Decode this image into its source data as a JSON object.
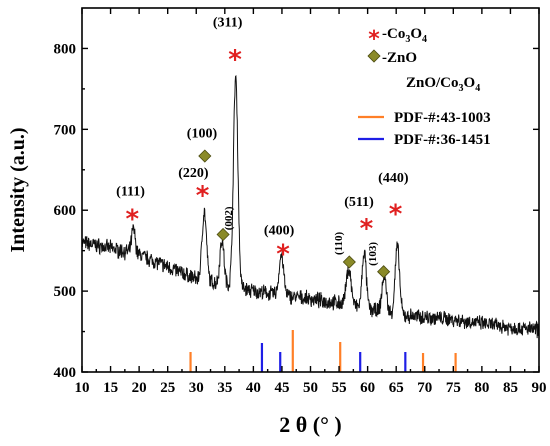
{
  "chart_data": {
    "type": "line",
    "xlabel": "2 θ (° )",
    "ylabel": "Intensity (a.u.)",
    "xlim": [
      10,
      90
    ],
    "ylim": [
      400,
      850
    ],
    "xticks": [
      10,
      15,
      20,
      25,
      30,
      35,
      40,
      45,
      50,
      55,
      60,
      65,
      70,
      75,
      80,
      85,
      90
    ],
    "yticks": [
      400,
      500,
      600,
      700,
      800
    ],
    "grid": false,
    "colors": {
      "trace": "#111111",
      "co3o4_star": "#e02020",
      "zno_diamond": "#8a8a28",
      "pdf_43_1003": "#ff7f27",
      "pdf_36_1451": "#1e1ee6"
    },
    "series": [
      {
        "name": "ZnO/Co3O4",
        "type": "xrd-pattern",
        "baseline": [
          [
            10,
            560
          ],
          [
            15,
            553
          ],
          [
            20,
            545
          ],
          [
            25,
            530
          ],
          [
            30,
            515
          ],
          [
            35,
            508
          ],
          [
            40,
            500
          ],
          [
            45,
            495
          ],
          [
            50,
            490
          ],
          [
            55,
            485
          ],
          [
            60,
            478
          ],
          [
            65,
            470
          ],
          [
            70,
            468
          ],
          [
            75,
            465
          ],
          [
            80,
            460
          ],
          [
            85,
            455
          ],
          [
            90,
            452
          ]
        ],
        "peaks": [
          {
            "x": 19.0,
            "height": 30,
            "width": 0.45
          },
          {
            "x": 31.4,
            "height": 85,
            "width": 0.55
          },
          {
            "x": 34.5,
            "height": 55,
            "width": 0.5
          },
          {
            "x": 36.9,
            "height": 260,
            "width": 0.55
          },
          {
            "x": 44.9,
            "height": 50,
            "width": 0.55
          },
          {
            "x": 56.7,
            "height": 45,
            "width": 0.6
          },
          {
            "x": 59.4,
            "height": 70,
            "width": 0.5
          },
          {
            "x": 62.9,
            "height": 45,
            "width": 0.55
          },
          {
            "x": 65.2,
            "height": 85,
            "width": 0.55
          }
        ]
      }
    ],
    "reference_patterns": [
      {
        "name": "PDF-#:43-1003",
        "color": "#ff7f27",
        "lines": [
          {
            "x": 29.0,
            "h": 20
          },
          {
            "x": 46.9,
            "h": 42
          },
          {
            "x": 55.2,
            "h": 30
          },
          {
            "x": 69.7,
            "h": 19
          },
          {
            "x": 75.4,
            "h": 19
          }
        ]
      },
      {
        "name": "PDF-#:36-1451",
        "color": "#1e1ee6",
        "lines": [
          {
            "x": 41.5,
            "h": 29
          },
          {
            "x": 44.7,
            "h": 20
          },
          {
            "x": 58.7,
            "h": 20
          },
          {
            "x": 66.6,
            "h": 20
          }
        ]
      }
    ],
    "markers": [
      {
        "type": "star",
        "x": 18.8,
        "y": 591,
        "label": "(111)",
        "label_x": 18.5,
        "label_y": 618
      },
      {
        "type": "star",
        "x": 31.1,
        "y": 620,
        "label": "(220)",
        "label_x": 29.5,
        "label_y": 641
      },
      {
        "type": "star",
        "x": 36.8,
        "y": 788,
        "label": "(311)",
        "label_x": 35.5,
        "label_y": 827
      },
      {
        "type": "star",
        "x": 45.2,
        "y": 548,
        "label": "(400)",
        "label_x": 44.5,
        "label_y": 570
      },
      {
        "type": "star",
        "x": 59.8,
        "y": 579,
        "label": "(511)",
        "label_x": 58.5,
        "label_y": 605
      },
      {
        "type": "star",
        "x": 64.9,
        "y": 597,
        "label": "(440)",
        "label_x": 64.5,
        "label_y": 635
      },
      {
        "type": "diamond",
        "x": 31.5,
        "y": 667,
        "label": "(100)",
        "label_x": 31.0,
        "label_y": 690
      },
      {
        "type": "diamond",
        "x": 34.7,
        "y": 570,
        "label": "(002)",
        "label_x": 36.3,
        "label_y": 590,
        "vertical": true
      },
      {
        "type": "diamond",
        "x": 56.8,
        "y": 536,
        "label": "(110)",
        "label_x": 55.5,
        "label_y": 559,
        "vertical": true
      },
      {
        "type": "diamond",
        "x": 62.8,
        "y": 524,
        "label": "(103)",
        "label_x": 61.5,
        "label_y": 546,
        "vertical": true
      }
    ],
    "legend": {
      "placement": "top-right",
      "items": [
        {
          "symbol": "star",
          "symbol_text": "*",
          "text": "-Co",
          "sub1": "3",
          "mid": "O",
          "sub2": "4"
        },
        {
          "symbol": "diamond",
          "text": "-ZnO"
        },
        {
          "symbol": "none",
          "text": "ZnO/Co",
          "sub1": "3",
          "mid": "O",
          "sub2": "4"
        },
        {
          "symbol": "line-orange",
          "text": "PDF-#:43-1003"
        },
        {
          "symbol": "line-blue",
          "text": "PDF-#:36-1451"
        }
      ]
    }
  }
}
